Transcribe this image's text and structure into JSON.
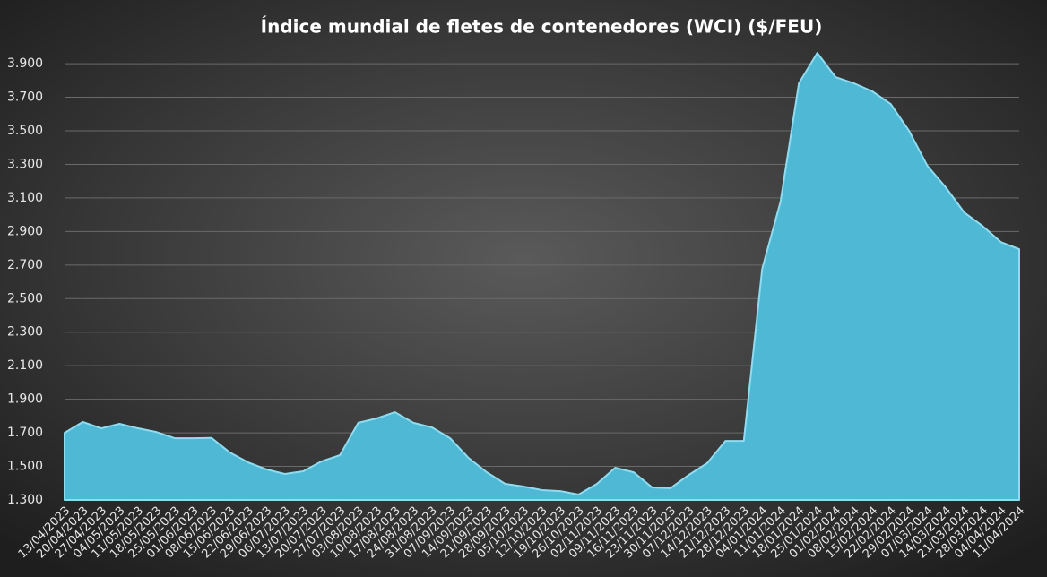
{
  "chart_data": {
    "type": "area",
    "title": "Índice mundial de fletes de contenedores (WCI) ($/FEU)",
    "categories": [
      "13/04/2023",
      "20/04/2023",
      "27/04/2023",
      "04/05/2023",
      "11/05/2023",
      "18/05/2023",
      "25/05/2023",
      "01/06/2023",
      "08/06/2023",
      "15/06/2023",
      "22/06/2023",
      "29/06/2023",
      "06/07/2023",
      "13/07/2023",
      "20/07/2023",
      "27/07/2023",
      "03/08/2023",
      "10/08/2023",
      "17/08/2023",
      "24/08/2023",
      "31/08/2023",
      "07/09/2023",
      "14/09/2023",
      "21/09/2023",
      "28/09/2023",
      "05/10/2023",
      "12/10/2023",
      "19/10/2023",
      "26/10/2023",
      "02/11/2023",
      "09/11/2023",
      "16/11/2023",
      "23/11/2023",
      "30/11/2023",
      "07/12/2023",
      "14/12/2023",
      "21/12/2023",
      "28/12/2023",
      "04/01/2024",
      "11/01/2024",
      "18/01/2024",
      "25/01/2024",
      "01/02/2024",
      "08/02/2024",
      "15/02/2024",
      "22/02/2024",
      "29/02/2024",
      "07/03/2024",
      "14/03/2024",
      "21/03/2024",
      "28/03/2024",
      "04/04/2024",
      "11/04/2024"
    ],
    "values": [
      1700,
      1765,
      1727,
      1754,
      1727,
      1705,
      1668,
      1668,
      1670,
      1583,
      1524,
      1482,
      1455,
      1471,
      1530,
      1567,
      1760,
      1786,
      1823,
      1760,
      1733,
      1668,
      1551,
      1465,
      1396,
      1380,
      1359,
      1353,
      1332,
      1396,
      1492,
      1465,
      1375,
      1370,
      1449,
      1519,
      1652,
      1652,
      2677,
      3078,
      3783,
      3964,
      3820,
      3783,
      3735,
      3660,
      3500,
      3291,
      3163,
      3014,
      2933,
      2837,
      2795
    ],
    "color": "#4fb8d4",
    "ylim": [
      1300,
      3970
    ],
    "yticks": [
      {
        "value": 1300,
        "label": "1.300"
      },
      {
        "value": 1500,
        "label": "1.500"
      },
      {
        "value": 1700,
        "label": "1.700"
      },
      {
        "value": 1900,
        "label": "1.900"
      },
      {
        "value": 2100,
        "label": "2.100"
      },
      {
        "value": 2300,
        "label": "2.300"
      },
      {
        "value": 2500,
        "label": "2.500"
      },
      {
        "value": 2700,
        "label": "2.700"
      },
      {
        "value": 2900,
        "label": "2.900"
      },
      {
        "value": 3100,
        "label": "3.100"
      },
      {
        "value": 3300,
        "label": "3.300"
      },
      {
        "value": 3500,
        "label": "3.500"
      },
      {
        "value": 3700,
        "label": "3.700"
      },
      {
        "value": 3900,
        "label": "3.900"
      }
    ],
    "grid": true
  }
}
